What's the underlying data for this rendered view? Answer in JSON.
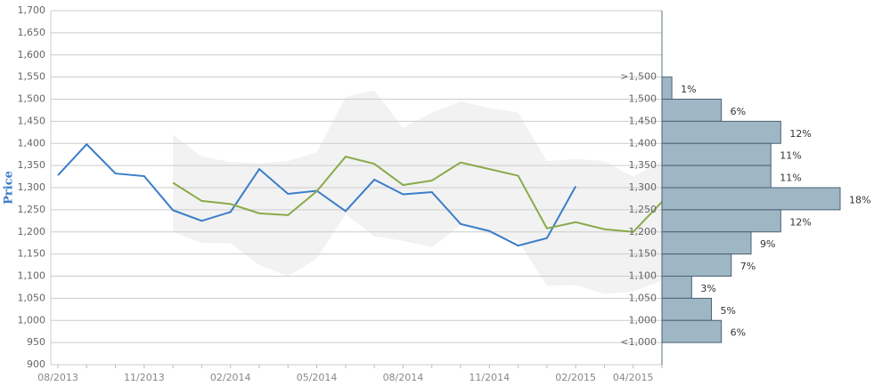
{
  "chart_data": [
    {
      "type": "line",
      "y_label": "Price",
      "categories": [
        "08/2013",
        null,
        null,
        "11/2013",
        null,
        null,
        "02/2014",
        null,
        null,
        "05/2014",
        null,
        null,
        "08/2014",
        null,
        null,
        "11/2014",
        null,
        null,
        "02/2015",
        null,
        "04/2015",
        null
      ],
      "ylim": [
        900,
        1700
      ],
      "yticks": [
        900,
        950,
        {
          "value": 1000,
          "label": "1,000"
        },
        {
          "value": 1050,
          "label": "1,050"
        },
        {
          "value": 1100,
          "label": "1,100"
        },
        {
          "value": 1150,
          "label": "1,150"
        },
        {
          "value": 1200,
          "label": "1,200"
        },
        {
          "value": 1250,
          "label": "1,250"
        },
        {
          "value": 1300,
          "label": "1,300"
        },
        {
          "value": 1350,
          "label": "1,350"
        },
        {
          "value": 1400,
          "label": "1,400"
        },
        {
          "value": 1450,
          "label": "1,450"
        },
        {
          "value": 1500,
          "label": "1,500"
        },
        {
          "value": 1550,
          "label": "1,550"
        },
        {
          "value": 1600,
          "label": "1,600"
        },
        {
          "value": 1650,
          "label": "1,650"
        },
        {
          "value": 1700,
          "label": "1,700"
        }
      ],
      "grid": true,
      "band": {
        "color": "#f2f2f2",
        "upper": [
          null,
          null,
          null,
          null,
          1420,
          1370,
          1358,
          1355,
          1360,
          1380,
          1505,
          1520,
          1435,
          1470,
          1495,
          1480,
          1470,
          1360,
          1365,
          1360,
          1325,
          1360
        ],
        "lower": [
          null,
          null,
          null,
          null,
          1200,
          1175,
          1175,
          1125,
          1100,
          1140,
          1240,
          1190,
          1180,
          1165,
          1215,
          1195,
          1180,
          1078,
          1080,
          1060,
          1065,
          1090
        ]
      },
      "series": [
        {
          "color": "#3a7dc9",
          "values": [
            1328,
            1398,
            1332,
            1326,
            1249,
            1225,
            1245,
            1342,
            1286,
            1293,
            1247,
            1318,
            1285,
            1290,
            1218,
            1202,
            1169,
            1186,
            1303,
            null,
            null,
            null
          ]
        },
        {
          "color": "#8aaa4a",
          "values": [
            null,
            null,
            null,
            null,
            1311,
            1270,
            1263,
            1242,
            1238,
            1292,
            1370,
            1354,
            1306,
            1316,
            1357,
            1342,
            1327,
            1208,
            1222,
            1206,
            1200,
            1268
          ]
        }
      ]
    },
    {
      "type": "histogram",
      "labels": [
        ">1,500",
        "1,500",
        "1,450",
        "1,400",
        "1,350",
        "1,300",
        "1,250",
        "1,200",
        "1,150",
        "1,100",
        "1,050",
        "1,000",
        "<1,000"
      ],
      "bins": [
        1550,
        1500,
        1450,
        1400,
        1350,
        1300,
        1250,
        1200,
        1150,
        1100,
        1050,
        1000,
        950
      ],
      "values": [
        1,
        6,
        12,
        11,
        11,
        18,
        12,
        9,
        7,
        3,
        5,
        6
      ],
      "value_labels": [
        "1%",
        "6%",
        "12%",
        "11%",
        "11%",
        "18%",
        "12%",
        "9%",
        "7%",
        "3%",
        "5%",
        "6%"
      ],
      "xlim": [
        0,
        18
      ],
      "ylim": [
        900,
        1700
      ],
      "color": "#9fb6c5",
      "edge_color": "#4a6272"
    }
  ]
}
